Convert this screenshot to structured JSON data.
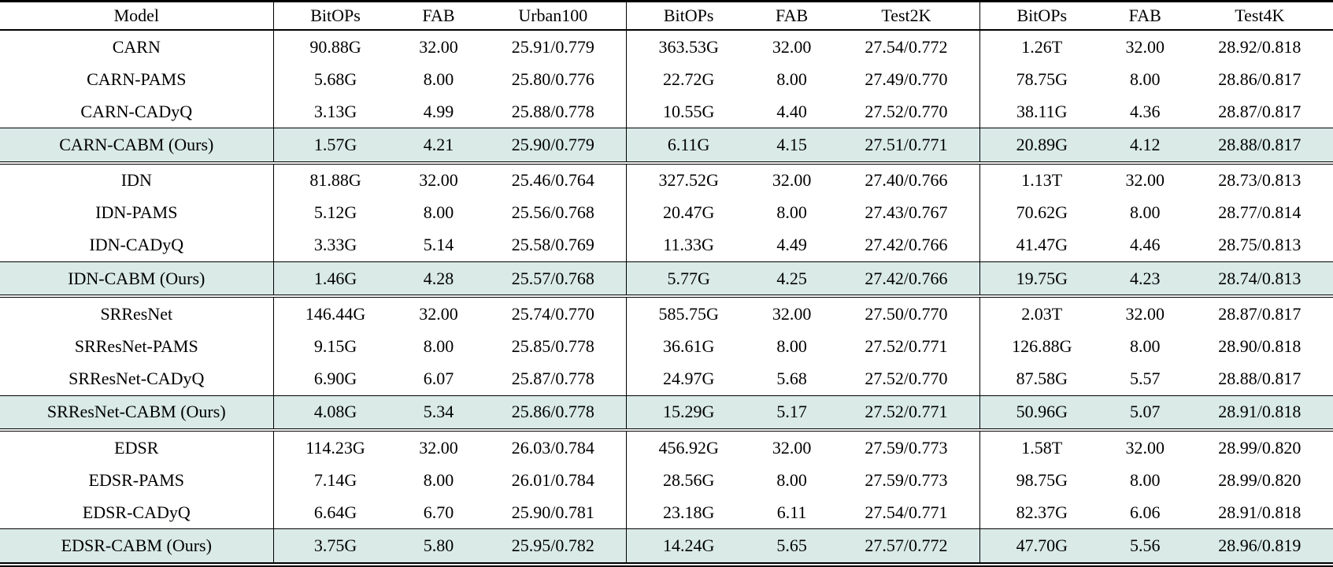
{
  "table": {
    "header": [
      "Model",
      "BitOPs",
      "FAB",
      "Urban100",
      "BitOPs",
      "FAB",
      "Test2K",
      "BitOPs",
      "FAB",
      "Test4K"
    ],
    "groups": [
      {
        "rows": [
          {
            "highlight": false,
            "cells": [
              "CARN",
              "90.88G",
              "32.00",
              "25.91/0.779",
              "363.53G",
              "32.00",
              "27.54/0.772",
              "1.26T",
              "32.00",
              "28.92/0.818"
            ]
          },
          {
            "highlight": false,
            "cells": [
              "CARN-PAMS",
              "5.68G",
              "8.00",
              "25.80/0.776",
              "22.72G",
              "8.00",
              "27.49/0.770",
              "78.75G",
              "8.00",
              "28.86/0.817"
            ]
          },
          {
            "highlight": false,
            "cells": [
              "CARN-CADyQ",
              "3.13G",
              "4.99",
              "25.88/0.778",
              "10.55G",
              "4.40",
              "27.52/0.770",
              "38.11G",
              "4.36",
              "28.87/0.817"
            ]
          },
          {
            "highlight": true,
            "cells": [
              "CARN-CABM (Ours)",
              "1.57G",
              "4.21",
              "25.90/0.779",
              "6.11G",
              "4.15",
              "27.51/0.771",
              "20.89G",
              "4.12",
              "28.88/0.817"
            ]
          }
        ]
      },
      {
        "rows": [
          {
            "highlight": false,
            "cells": [
              "IDN",
              "81.88G",
              "32.00",
              "25.46/0.764",
              "327.52G",
              "32.00",
              "27.40/0.766",
              "1.13T",
              "32.00",
              "28.73/0.813"
            ]
          },
          {
            "highlight": false,
            "cells": [
              "IDN-PAMS",
              "5.12G",
              "8.00",
              "25.56/0.768",
              "20.47G",
              "8.00",
              "27.43/0.767",
              "70.62G",
              "8.00",
              "28.77/0.814"
            ]
          },
          {
            "highlight": false,
            "cells": [
              "IDN-CADyQ",
              "3.33G",
              "5.14",
              "25.58/0.769",
              "11.33G",
              "4.49",
              "27.42/0.766",
              "41.47G",
              "4.46",
              "28.75/0.813"
            ]
          },
          {
            "highlight": true,
            "cells": [
              "IDN-CABM (Ours)",
              "1.46G",
              "4.28",
              "25.57/0.768",
              "5.77G",
              "4.25",
              "27.42/0.766",
              "19.75G",
              "4.23",
              "28.74/0.813"
            ]
          }
        ]
      },
      {
        "rows": [
          {
            "highlight": false,
            "cells": [
              "SRResNet",
              "146.44G",
              "32.00",
              "25.74/0.770",
              "585.75G",
              "32.00",
              "27.50/0.770",
              "2.03T",
              "32.00",
              "28.87/0.817"
            ]
          },
          {
            "highlight": false,
            "cells": [
              "SRResNet-PAMS",
              "9.15G",
              "8.00",
              "25.85/0.778",
              "36.61G",
              "8.00",
              "27.52/0.771",
              "126.88G",
              "8.00",
              "28.90/0.818"
            ]
          },
          {
            "highlight": false,
            "cells": [
              "SRResNet-CADyQ",
              "6.90G",
              "6.07",
              "25.87/0.778",
              "24.97G",
              "5.68",
              "27.52/0.770",
              "87.58G",
              "5.57",
              "28.88/0.817"
            ]
          },
          {
            "highlight": true,
            "cells": [
              "SRResNet-CABM (Ours)",
              "4.08G",
              "5.34",
              "25.86/0.778",
              "15.29G",
              "5.17",
              "27.52/0.771",
              "50.96G",
              "5.07",
              "28.91/0.818"
            ]
          }
        ]
      },
      {
        "rows": [
          {
            "highlight": false,
            "cells": [
              "EDSR",
              "114.23G",
              "32.00",
              "26.03/0.784",
              "456.92G",
              "32.00",
              "27.59/0.773",
              "1.58T",
              "32.00",
              "28.99/0.820"
            ]
          },
          {
            "highlight": false,
            "cells": [
              "EDSR-PAMS",
              "7.14G",
              "8.00",
              "26.01/0.784",
              "28.56G",
              "8.00",
              "27.59/0.773",
              "98.75G",
              "8.00",
              "28.99/0.820"
            ]
          },
          {
            "highlight": false,
            "cells": [
              "EDSR-CADyQ",
              "6.64G",
              "6.70",
              "25.90/0.781",
              "23.18G",
              "6.11",
              "27.54/0.771",
              "82.37G",
              "6.06",
              "28.91/0.818"
            ]
          },
          {
            "highlight": true,
            "cells": [
              "EDSR-CABM (Ours)",
              "3.75G",
              "5.80",
              "25.95/0.782",
              "14.24G",
              "5.65",
              "27.57/0.772",
              "47.70G",
              "5.56",
              "28.96/0.819"
            ]
          }
        ]
      }
    ]
  },
  "colors": {
    "highlight_row": "#d9eae7",
    "rule": "#000000"
  }
}
